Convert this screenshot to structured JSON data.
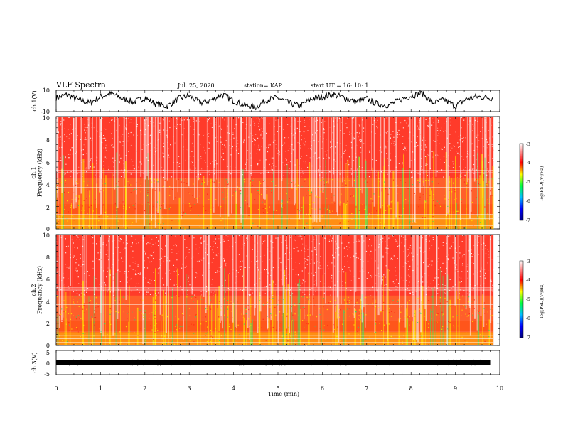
{
  "header": {
    "title": "VLF Spectra",
    "date": "Jul. 25, 2020",
    "station": "station= KAP",
    "start": "start  UT =   16: 10: 1"
  },
  "colors": {
    "spectrogram_background": "#ff3b2a",
    "trace": "#000000",
    "colorbar_stops": [
      "#000080",
      "#0000ff",
      "#00c0ff",
      "#00ff40",
      "#ffff00",
      "#ff0000",
      "#ffffff"
    ]
  },
  "chart_data": [
    {
      "type": "line",
      "name": "ch1-waveform",
      "ylabel": "ch.1(V)",
      "ylim": [
        -10,
        10
      ],
      "yticks": [
        "10",
        "-10"
      ],
      "xlim": [
        0,
        10
      ],
      "x": [
        0.0,
        0.25,
        0.5,
        0.75,
        1.0,
        1.25,
        1.5,
        1.75,
        2.0,
        2.25,
        2.5,
        2.75,
        3.0,
        3.25,
        3.5,
        3.75,
        4.0,
        4.25,
        4.5,
        4.75,
        5.0,
        5.25,
        5.5,
        5.75,
        6.0,
        6.25,
        6.5,
        6.75,
        7.0,
        7.25,
        7.5,
        7.75,
        8.0,
        8.25,
        8.5,
        8.75,
        9.0,
        9.25,
        9.5,
        9.75
      ],
      "y": [
        3,
        6,
        1,
        -2,
        4,
        7,
        2,
        -1,
        3,
        -3,
        -5,
        2,
        5,
        -2,
        1,
        6,
        0,
        -4,
        -6,
        1,
        3,
        -2,
        -5,
        2,
        4,
        6,
        3,
        -1,
        2,
        -3,
        -4,
        1,
        5,
        7,
        -2,
        1,
        -5,
        2,
        4,
        3
      ]
    },
    {
      "type": "heatmap",
      "name": "ch1-spectrogram",
      "ylabel": "ch.1\nFrequency (kHz)",
      "xlim": [
        0,
        10
      ],
      "ylim": [
        0,
        10
      ],
      "yticks": [
        "0",
        "2",
        "4",
        "6",
        "8",
        "10"
      ],
      "colorbar": {
        "label": "log(PSD)(V²/Hz)",
        "range": [
          -7,
          -3
        ],
        "ticks": [
          "-3",
          "-4",
          "-5",
          "-6",
          "-7"
        ]
      }
    },
    {
      "type": "heatmap",
      "name": "ch2-spectrogram",
      "ylabel": "ch.2\nFrequency (kHz)",
      "xlim": [
        0,
        10
      ],
      "ylim": [
        0,
        10
      ],
      "yticks": [
        "0",
        "2",
        "4",
        "6",
        "8",
        "10"
      ],
      "colorbar": {
        "label": "log(PSD)(V²/Hz)",
        "range": [
          -7,
          -3
        ],
        "ticks": [
          "-3",
          "-4",
          "-5",
          "-6",
          "-7"
        ]
      }
    },
    {
      "type": "line",
      "name": "ch3-waveform",
      "ylabel": "ch.3(V)",
      "ylim": [
        -5,
        5
      ],
      "yticks": [
        "5",
        "0",
        "-5"
      ],
      "xlim": [
        0,
        10
      ],
      "x": [
        0,
        9.8
      ],
      "y": [
        0,
        0
      ],
      "xlabel": "Time (min)",
      "xticks": [
        "0",
        "1",
        "2",
        "3",
        "4",
        "5",
        "6",
        "7",
        "8",
        "9",
        "10"
      ]
    }
  ]
}
